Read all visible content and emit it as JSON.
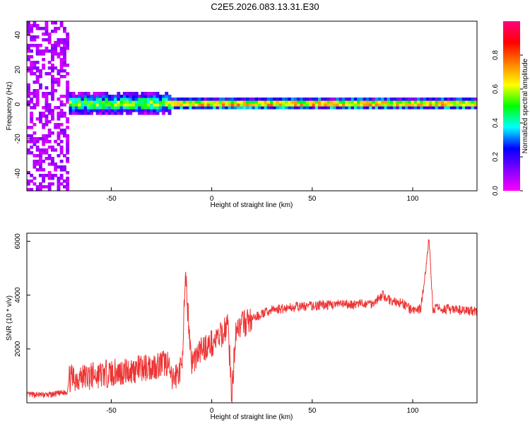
{
  "title": "C2E5.2026.083.13.31.E30",
  "chart_data": [
    {
      "type": "heatmap",
      "xlabel": "Height of straight line (km)",
      "ylabel": "Frequency (Hz)",
      "xlim": [
        -92,
        132
      ],
      "ylim": [
        -50,
        48
      ],
      "xticks": [
        -50,
        0,
        50,
        100
      ],
      "yticks": [
        -40,
        -20,
        0,
        20,
        40
      ],
      "grid": false,
      "colorbar": {
        "label": "Normalized spectral amplitude",
        "range": [
          0.0,
          1.0
        ],
        "ticks": [
          0.0,
          0.2,
          0.4,
          0.6,
          0.8
        ],
        "tick_labels": [
          "0.0",
          "0.2",
          "0.4",
          "0.6",
          "0.8"
        ],
        "colormap": [
          "#ff00ff",
          "#8000ff",
          "#0000ff",
          "#00ffff",
          "#00ff00",
          "#ffff00",
          "#ff8000",
          "#ff0000",
          "#ff0080"
        ]
      },
      "description_bands": [
        {
          "x_range": [
            -92,
            -71
          ],
          "freq_range": [
            -50,
            48
          ],
          "amplitude": 0.1,
          "pattern": "broadband noise"
        },
        {
          "x_range": [
            -71,
            -20
          ],
          "freq_range": [
            -6,
            7
          ],
          "amplitude": 0.4,
          "pattern": "signal band"
        },
        {
          "x_range": [
            -20,
            132
          ],
          "freq_range": [
            -3,
            4
          ],
          "amplitude": 0.55,
          "pattern": "narrow signal band"
        }
      ]
    },
    {
      "type": "line",
      "xlabel": "Height of straight line (km)",
      "ylabel": "SNR (10 * v/v)",
      "xlim": [
        -92,
        132
      ],
      "ylim": [
        0,
        6300
      ],
      "xticks": [
        -50,
        0,
        50,
        100
      ],
      "yticks": [
        2000,
        4000,
        6000
      ],
      "grid": false,
      "series": [
        {
          "color": "#ee3333",
          "x": [
            -92,
            -80,
            -72,
            -71,
            -60,
            -50,
            -40,
            -30,
            -22,
            -20,
            -15,
            -13,
            -10,
            -5,
            0,
            5,
            8,
            10,
            12,
            15,
            20,
            25,
            30,
            40,
            50,
            60,
            70,
            80,
            85,
            90,
            95,
            100,
            104,
            107,
            108,
            110,
            115,
            120,
            132
          ],
          "y": [
            300,
            300,
            400,
            900,
            1000,
            1100,
            1200,
            1350,
            1500,
            800,
            1300,
            4550,
            1500,
            2000,
            2200,
            2500,
            3000,
            200,
            2800,
            2900,
            3100,
            3300,
            3450,
            3550,
            3600,
            3650,
            3650,
            3700,
            4000,
            3750,
            3700,
            3400,
            3500,
            5200,
            6200,
            3500,
            3500,
            3450,
            3400
          ]
        }
      ]
    }
  ]
}
